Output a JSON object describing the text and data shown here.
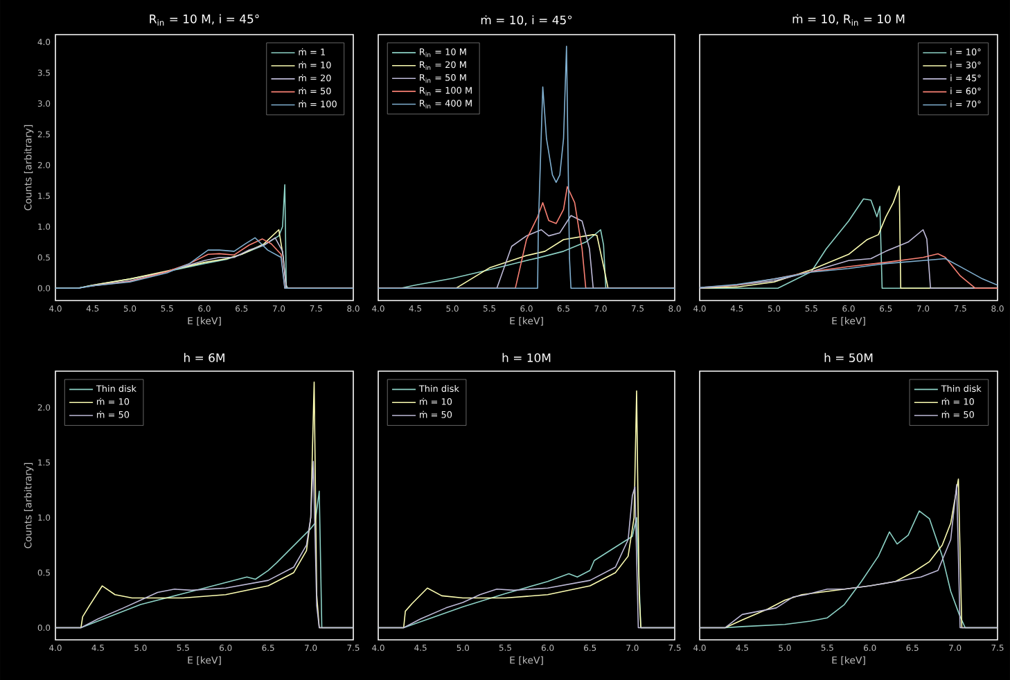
{
  "chart_data": [
    {
      "type": "line",
      "title": "R$_{in}$ = 10 M, i = 45°",
      "xlabel": "E [keV]",
      "ylabel": "Counts [arbitrary]",
      "legend": "top right",
      "xlim": [
        4.0,
        8.0
      ],
      "ylim": [
        -0.2,
        4.12
      ],
      "xticks": [
        {
          "value": 4.0,
          "label": "4.0"
        },
        {
          "value": 4.5,
          "label": "4.5"
        },
        {
          "value": 5.0,
          "label": "5.0"
        },
        {
          "value": 5.5,
          "label": "5.5"
        },
        {
          "value": 6.0,
          "label": "6.0"
        },
        {
          "value": 6.5,
          "label": "6.5"
        },
        {
          "value": 7.0,
          "label": "7.0"
        },
        {
          "value": 7.5,
          "label": "7.5"
        },
        {
          "value": 8.0,
          "label": "8.0"
        }
      ],
      "yticks": [
        {
          "value": 0.0,
          "label": "0.0"
        },
        {
          "value": 0.5,
          "label": "0.5"
        },
        {
          "value": 1.0,
          "label": "1.0"
        },
        {
          "value": 1.5,
          "label": "1.5"
        },
        {
          "value": 2.0,
          "label": "2.0"
        },
        {
          "value": 2.5,
          "label": "2.5"
        },
        {
          "value": 3.0,
          "label": "3.0"
        },
        {
          "value": 3.5,
          "label": "3.5"
        },
        {
          "value": 4.0,
          "label": "4.0"
        }
      ],
      "series": [
        {
          "name": "ṁ = 1",
          "color": "#8dd3c7",
          "x": [
            4.0,
            4.3,
            4.5,
            5.0,
            5.5,
            6.0,
            6.3,
            6.5,
            6.8,
            7.0,
            7.05,
            7.08,
            7.1,
            7.12,
            8.0
          ],
          "values": [
            0,
            0,
            0.05,
            0.15,
            0.27,
            0.4,
            0.47,
            0.55,
            0.7,
            0.85,
            1.0,
            1.68,
            0.05,
            0,
            0
          ]
        },
        {
          "name": "ṁ = 10",
          "color": "#feffb3",
          "x": [
            4.0,
            4.3,
            4.5,
            5.0,
            5.5,
            6.0,
            6.3,
            6.5,
            6.8,
            7.0,
            7.06,
            7.1,
            8.0
          ],
          "values": [
            0,
            0,
            0.05,
            0.15,
            0.28,
            0.42,
            0.48,
            0.55,
            0.72,
            0.95,
            0.5,
            0,
            0
          ]
        },
        {
          "name": "ṁ = 20",
          "color": "#bfbbd9",
          "x": [
            4.0,
            4.3,
            4.5,
            5.0,
            5.5,
            6.0,
            6.2,
            6.4,
            6.6,
            6.8,
            6.95,
            7.05,
            7.1,
            8.0
          ],
          "values": [
            0,
            0,
            0.04,
            0.12,
            0.27,
            0.45,
            0.5,
            0.5,
            0.62,
            0.7,
            0.82,
            0.6,
            0,
            0
          ]
        },
        {
          "name": "ṁ = 50",
          "color": "#fa8174",
          "x": [
            4.5,
            5.0,
            5.5,
            5.8,
            6.05,
            6.2,
            6.4,
            6.6,
            6.78,
            6.9,
            7.03,
            7.08,
            8.0
          ],
          "values": [
            0.04,
            0.11,
            0.27,
            0.4,
            0.55,
            0.56,
            0.54,
            0.7,
            0.8,
            0.72,
            0.55,
            0,
            0
          ]
        },
        {
          "name": "ṁ = 100",
          "color": "#81b1d2",
          "x": [
            4.0,
            4.3,
            4.5,
            5.0,
            5.5,
            5.8,
            6.05,
            6.2,
            6.4,
            6.55,
            6.68,
            6.85,
            7.03,
            7.08,
            8.0
          ],
          "values": [
            0,
            0,
            0.04,
            0.1,
            0.25,
            0.4,
            0.62,
            0.62,
            0.6,
            0.72,
            0.82,
            0.62,
            0.5,
            0,
            0
          ]
        }
      ]
    },
    {
      "type": "line",
      "title": "ṁ = 10, i = 45°",
      "xlabel": "E [keV]",
      "legend": "top left",
      "tick_labels": "x",
      "xlim": [
        4.0,
        8.0
      ],
      "ylim": [
        -0.2,
        4.12
      ],
      "xticks": [
        {
          "value": 4.0,
          "label": "4.0"
        },
        {
          "value": 4.5,
          "label": "4.5"
        },
        {
          "value": 5.0,
          "label": "5.0"
        },
        {
          "value": 5.5,
          "label": "5.5"
        },
        {
          "value": 6.0,
          "label": "6.0"
        },
        {
          "value": 6.5,
          "label": "6.5"
        },
        {
          "value": 7.0,
          "label": "7.0"
        },
        {
          "value": 7.5,
          "label": "7.5"
        },
        {
          "value": 8.0,
          "label": "8.0"
        }
      ],
      "series": [
        {
          "name": "R$_{in}$ = 10 M",
          "color": "#8dd3c7",
          "x": [
            4.0,
            4.3,
            4.5,
            5.0,
            5.5,
            6.0,
            6.15,
            6.5,
            6.8,
            7.0,
            7.04,
            7.07,
            8.0
          ],
          "values": [
            0,
            0,
            0.05,
            0.16,
            0.3,
            0.45,
            0.49,
            0.6,
            0.75,
            0.95,
            0.7,
            0,
            0
          ]
        },
        {
          "name": "R$_{in}$ = 20 M",
          "color": "#feffb3",
          "x": [
            4.0,
            5.05,
            5.5,
            6.0,
            6.25,
            6.5,
            6.9,
            6.95,
            7.05,
            7.1,
            8.0
          ],
          "values": [
            0,
            0,
            0.33,
            0.53,
            0.6,
            0.79,
            0.87,
            0.86,
            0.3,
            0,
            0
          ]
        },
        {
          "name": "R$_{in}$ = 50 M",
          "color": "#bfbbd9",
          "x": [
            4.0,
            5.6,
            5.8,
            6.0,
            6.2,
            6.3,
            6.45,
            6.6,
            6.75,
            6.85,
            6.9,
            8.0
          ],
          "values": [
            0,
            0,
            0.68,
            0.85,
            0.95,
            0.85,
            0.9,
            1.18,
            1.09,
            0.64,
            0,
            0
          ]
        },
        {
          "name": "R$_{in}$ = 100 M",
          "color": "#fa8174",
          "x": [
            4.0,
            5.85,
            6.0,
            6.15,
            6.22,
            6.3,
            6.4,
            6.5,
            6.55,
            6.65,
            6.75,
            6.8,
            8.0
          ],
          "values": [
            0,
            0,
            0.79,
            1.16,
            1.39,
            1.1,
            1.05,
            1.28,
            1.65,
            1.39,
            0.64,
            0,
            0
          ]
        },
        {
          "name": "R$_{in}$ = 400 M",
          "color": "#81b1d2",
          "x": [
            4.0,
            6.15,
            6.16,
            6.22,
            6.27,
            6.35,
            6.4,
            6.45,
            6.5,
            6.54,
            6.58,
            6.6,
            8.0
          ],
          "values": [
            0,
            0,
            1.0,
            3.27,
            2.43,
            1.84,
            1.72,
            1.84,
            2.43,
            3.93,
            0.49,
            0,
            0
          ]
        }
      ]
    },
    {
      "type": "line",
      "title": "ṁ = 10, R$_{in}$ = 10 M",
      "xlabel": "E [keV]",
      "legend": "top right",
      "tick_labels": "x",
      "xlim": [
        4.0,
        8.0
      ],
      "ylim": [
        -0.2,
        4.12
      ],
      "xticks": [
        {
          "value": 4.0,
          "label": "4.0"
        },
        {
          "value": 4.5,
          "label": "4.5"
        },
        {
          "value": 5.0,
          "label": "5.0"
        },
        {
          "value": 5.5,
          "label": "5.5"
        },
        {
          "value": 6.0,
          "label": "6.0"
        },
        {
          "value": 6.5,
          "label": "6.5"
        },
        {
          "value": 7.0,
          "label": "7.0"
        },
        {
          "value": 7.5,
          "label": "7.5"
        },
        {
          "value": 8.0,
          "label": "8.0"
        }
      ],
      "series": [
        {
          "name": "i = 10°",
          "color": "#8dd3c7",
          "x": [
            4.0,
            5.05,
            5.5,
            5.7,
            6.0,
            6.2,
            6.3,
            6.38,
            6.42,
            6.45,
            8.0
          ],
          "values": [
            0,
            0,
            0.27,
            0.64,
            1.09,
            1.45,
            1.43,
            1.16,
            1.33,
            0,
            0
          ]
        },
        {
          "name": "i = 30°",
          "color": "#feffb3",
          "x": [
            4.0,
            4.5,
            5.0,
            5.5,
            6.0,
            6.25,
            6.4,
            6.5,
            6.6,
            6.68,
            6.7,
            8.0
          ],
          "values": [
            0,
            0.02,
            0.1,
            0.3,
            0.55,
            0.79,
            0.87,
            1.16,
            1.39,
            1.66,
            0,
            0
          ]
        },
        {
          "name": "i = 45°",
          "color": "#bfbbd9",
          "x": [
            4.0,
            4.5,
            5.0,
            5.5,
            6.0,
            6.3,
            6.5,
            6.8,
            7.0,
            7.05,
            7.1,
            8.0
          ],
          "values": [
            0,
            0.05,
            0.12,
            0.27,
            0.45,
            0.48,
            0.6,
            0.75,
            0.95,
            0.8,
            0,
            0
          ]
        },
        {
          "name": "i = 60°",
          "color": "#fa8174",
          "x": [
            4.0,
            4.5,
            5.0,
            5.5,
            6.0,
            6.5,
            7.0,
            7.2,
            7.3,
            7.5,
            7.7,
            8.0
          ],
          "values": [
            0.01,
            0.05,
            0.15,
            0.27,
            0.35,
            0.42,
            0.5,
            0.56,
            0.5,
            0.2,
            0,
            0
          ]
        },
        {
          "name": "i = 70°",
          "color": "#81b1d2",
          "x": [
            4.0,
            4.5,
            5.0,
            5.5,
            6.0,
            6.5,
            7.0,
            7.3,
            7.5,
            7.8,
            8.0
          ],
          "values": [
            0.01,
            0.06,
            0.15,
            0.26,
            0.32,
            0.4,
            0.45,
            0.48,
            0.35,
            0.15,
            0.05
          ]
        }
      ]
    },
    {
      "type": "line",
      "title": "h = 6M",
      "xlabel": "E [keV]",
      "ylabel": "Counts [arbitrary]",
      "legend": "top left",
      "xlim": [
        4.0,
        7.5
      ],
      "ylim": [
        -0.11,
        2.33
      ],
      "xticks": [
        {
          "value": 4.0,
          "label": "4.0"
        },
        {
          "value": 4.5,
          "label": "4.5"
        },
        {
          "value": 5.0,
          "label": "5.0"
        },
        {
          "value": 5.5,
          "label": "5.5"
        },
        {
          "value": 6.0,
          "label": "6.0"
        },
        {
          "value": 6.5,
          "label": "6.5"
        },
        {
          "value": 7.0,
          "label": "7.0"
        },
        {
          "value": 7.5,
          "label": "7.5"
        }
      ],
      "yticks": [
        {
          "value": 0.0,
          "label": "0.0"
        },
        {
          "value": 0.5,
          "label": "0.5"
        },
        {
          "value": 1.0,
          "label": "1.0"
        },
        {
          "value": 1.5,
          "label": "1.5"
        },
        {
          "value": 2.0,
          "label": "2.0"
        }
      ],
      "series": [
        {
          "name": "Thin disk",
          "color": "#8dd3c7",
          "x": [
            4.0,
            4.3,
            5.0,
            5.5,
            6.0,
            6.25,
            6.35,
            6.5,
            6.6,
            7.0,
            7.05,
            7.1,
            7.13,
            7.5
          ],
          "values": [
            0,
            0,
            0.21,
            0.31,
            0.41,
            0.46,
            0.44,
            0.52,
            0.59,
            0.9,
            0.95,
            1.24,
            0,
            0
          ]
        },
        {
          "name": "ṁ = 10",
          "color": "#feffb3",
          "x": [
            4.0,
            4.3,
            4.32,
            4.4,
            4.55,
            4.7,
            4.9,
            5.5,
            6.0,
            6.5,
            6.8,
            6.95,
            7.0,
            7.04,
            7.07,
            7.1,
            7.5
          ],
          "values": [
            0,
            0,
            0.1,
            0.2,
            0.38,
            0.3,
            0.27,
            0.27,
            0.3,
            0.38,
            0.5,
            0.7,
            1.0,
            2.23,
            0.3,
            0,
            0
          ]
        },
        {
          "name": "ṁ = 50",
          "color": "#bfbbd9",
          "x": [
            4.0,
            4.3,
            4.5,
            4.8,
            5.0,
            5.2,
            5.4,
            5.6,
            6.0,
            6.5,
            6.8,
            6.95,
            7.0,
            7.03,
            7.07,
            7.1,
            7.5
          ],
          "values": [
            0,
            0,
            0.08,
            0.18,
            0.25,
            0.32,
            0.35,
            0.34,
            0.36,
            0.43,
            0.55,
            0.75,
            1.0,
            1.51,
            0.2,
            0,
            0
          ]
        }
      ]
    },
    {
      "type": "line",
      "title": "h = 10M",
      "xlabel": "E [keV]",
      "legend": "top left",
      "tick_labels": "x",
      "xlim": [
        4.0,
        7.5
      ],
      "ylim": [
        -0.11,
        2.33
      ],
      "xticks": [
        {
          "value": 4.0,
          "label": "4.0"
        },
        {
          "value": 4.5,
          "label": "4.5"
        },
        {
          "value": 5.0,
          "label": "5.0"
        },
        {
          "value": 5.5,
          "label": "5.5"
        },
        {
          "value": 6.0,
          "label": "6.0"
        },
        {
          "value": 6.5,
          "label": "6.5"
        },
        {
          "value": 7.0,
          "label": "7.0"
        },
        {
          "value": 7.5,
          "label": "7.5"
        }
      ],
      "series": [
        {
          "name": "Thin disk",
          "color": "#8dd3c7",
          "x": [
            4.0,
            4.3,
            5.0,
            5.5,
            6.0,
            6.25,
            6.35,
            6.5,
            6.55,
            7.0,
            7.05,
            7.1,
            7.5
          ],
          "values": [
            0,
            0,
            0.19,
            0.31,
            0.42,
            0.49,
            0.46,
            0.52,
            0.61,
            0.83,
            1.0,
            0,
            0
          ]
        },
        {
          "name": "ṁ = 10",
          "color": "#feffb3",
          "x": [
            4.0,
            4.3,
            4.32,
            4.4,
            4.58,
            4.75,
            5.0,
            5.5,
            6.0,
            6.5,
            6.8,
            6.95,
            7.02,
            7.05,
            7.08,
            7.1,
            7.5
          ],
          "values": [
            0,
            0,
            0.15,
            0.22,
            0.36,
            0.29,
            0.27,
            0.27,
            0.3,
            0.38,
            0.5,
            0.65,
            1.0,
            2.15,
            0.3,
            0,
            0
          ]
        },
        {
          "name": "ṁ = 50",
          "color": "#bfbbd9",
          "x": [
            4.0,
            4.3,
            4.5,
            4.8,
            5.0,
            5.2,
            5.4,
            5.6,
            6.0,
            6.5,
            6.8,
            6.95,
            7.0,
            7.03,
            7.07,
            7.5
          ],
          "values": [
            0,
            0,
            0.08,
            0.18,
            0.23,
            0.3,
            0.35,
            0.34,
            0.36,
            0.43,
            0.55,
            0.8,
            1.2,
            1.28,
            0,
            0
          ]
        }
      ]
    },
    {
      "type": "line",
      "title": "h = 50M",
      "xlabel": "E [keV]",
      "legend": "top right",
      "tick_labels": "x",
      "xlim": [
        4.0,
        7.5
      ],
      "ylim": [
        -0.11,
        2.33
      ],
      "xticks": [
        {
          "value": 4.0,
          "label": "4.0"
        },
        {
          "value": 4.5,
          "label": "4.5"
        },
        {
          "value": 5.0,
          "label": "5.0"
        },
        {
          "value": 5.5,
          "label": "5.5"
        },
        {
          "value": 6.0,
          "label": "6.0"
        },
        {
          "value": 6.5,
          "label": "6.5"
        },
        {
          "value": 7.0,
          "label": "7.0"
        },
        {
          "value": 7.5,
          "label": "7.5"
        }
      ],
      "series": [
        {
          "name": "Thin disk",
          "color": "#8dd3c7",
          "x": [
            4.0,
            4.3,
            4.5,
            5.0,
            5.3,
            5.5,
            5.7,
            5.9,
            6.1,
            6.23,
            6.32,
            6.45,
            6.58,
            6.7,
            6.85,
            6.95,
            7.05,
            7.12,
            7.5
          ],
          "values": [
            0,
            0,
            0.01,
            0.03,
            0.06,
            0.09,
            0.21,
            0.42,
            0.65,
            0.87,
            0.76,
            0.84,
            1.06,
            0.99,
            0.65,
            0.33,
            0.12,
            0,
            0
          ]
        },
        {
          "name": "ṁ = 10",
          "color": "#feffb3",
          "x": [
            4.0,
            4.3,
            4.5,
            4.8,
            5.0,
            5.2,
            5.5,
            6.0,
            6.3,
            6.5,
            6.7,
            6.85,
            6.95,
            7.04,
            7.08,
            7.5
          ],
          "values": [
            0,
            0,
            0.07,
            0.17,
            0.25,
            0.3,
            0.33,
            0.38,
            0.42,
            0.5,
            0.6,
            0.75,
            0.95,
            1.35,
            0,
            0
          ]
        },
        {
          "name": "ṁ = 50",
          "color": "#bfbbd9",
          "x": [
            4.0,
            4.3,
            4.5,
            4.7,
            4.9,
            5.1,
            5.25,
            5.5,
            5.7,
            6.0,
            6.3,
            6.6,
            6.8,
            6.95,
            7.02,
            7.06,
            7.5
          ],
          "values": [
            0,
            0,
            0.12,
            0.15,
            0.18,
            0.28,
            0.3,
            0.35,
            0.35,
            0.38,
            0.42,
            0.46,
            0.52,
            0.8,
            1.3,
            0,
            0
          ]
        }
      ]
    }
  ]
}
